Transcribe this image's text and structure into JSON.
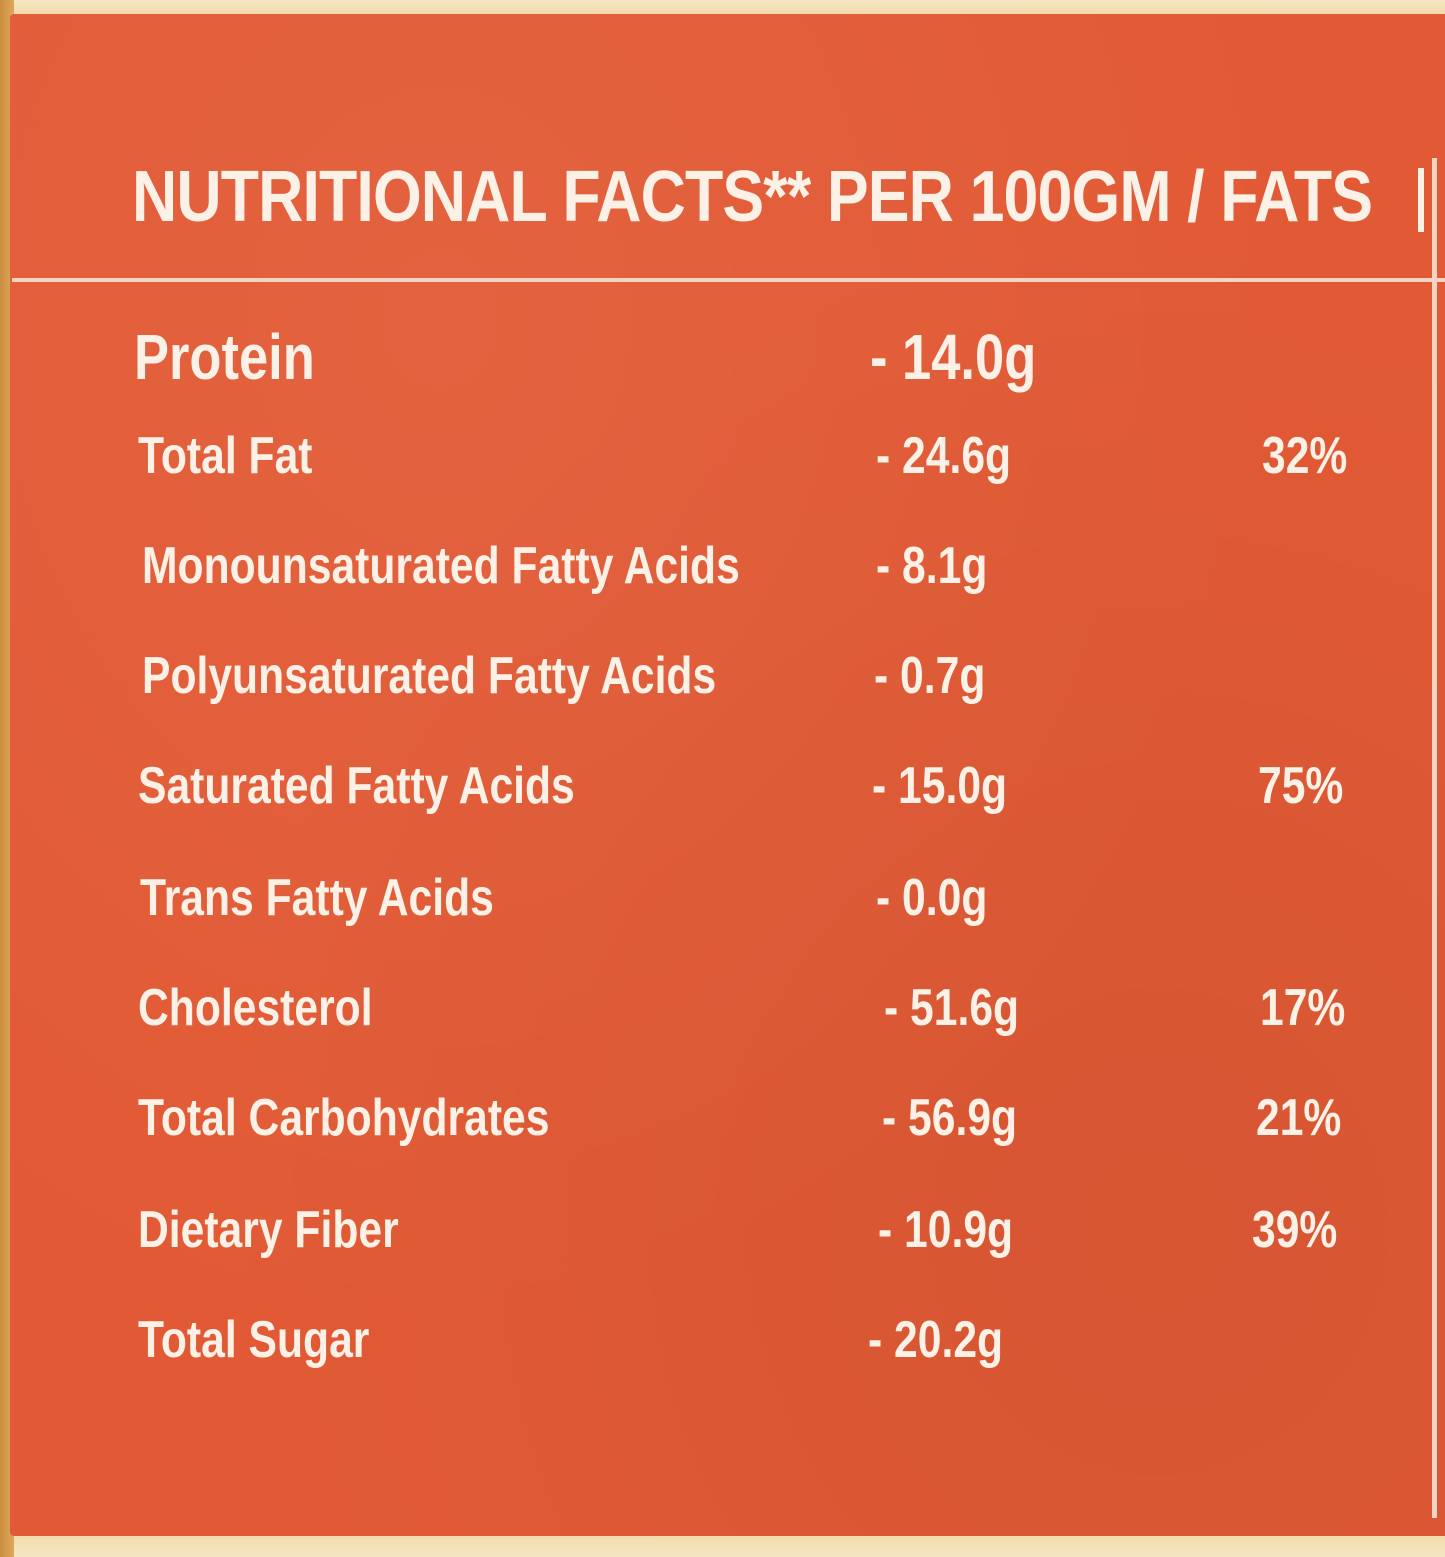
{
  "header": {
    "title": "NUTRITIONAL FACTS** PER 100GM / FATS"
  },
  "nutrients": [
    {
      "name": "Protein",
      "amount": "- 14.0g",
      "percent": ""
    },
    {
      "name": "Total Fat",
      "amount": "- 24.6g",
      "percent": "32%"
    },
    {
      "name": "Monounsaturated Fatty Acids",
      "amount": "- 8.1g",
      "percent": ""
    },
    {
      "name": "Polyunsaturated Fatty Acids",
      "amount": "- 0.7g",
      "percent": ""
    },
    {
      "name": "Saturated Fatty Acids",
      "amount": "- 15.0g",
      "percent": "75%"
    },
    {
      "name": "Trans Fatty Acids",
      "amount": "- 0.0g",
      "percent": ""
    },
    {
      "name": "Cholesterol",
      "amount": "- 51.6g",
      "percent": "17%"
    },
    {
      "name": "Total Carbohydrates",
      "amount": "- 56.9g",
      "percent": "21%"
    },
    {
      "name": "Dietary Fiber",
      "amount": "- 10.9g",
      "percent": "39%"
    },
    {
      "name": "Total Sugar",
      "amount": "- 20.2g",
      "percent": ""
    }
  ],
  "colors": {
    "panel": "#e25a35",
    "text": "#fbf1e6",
    "cream": "#f3d8a6"
  }
}
